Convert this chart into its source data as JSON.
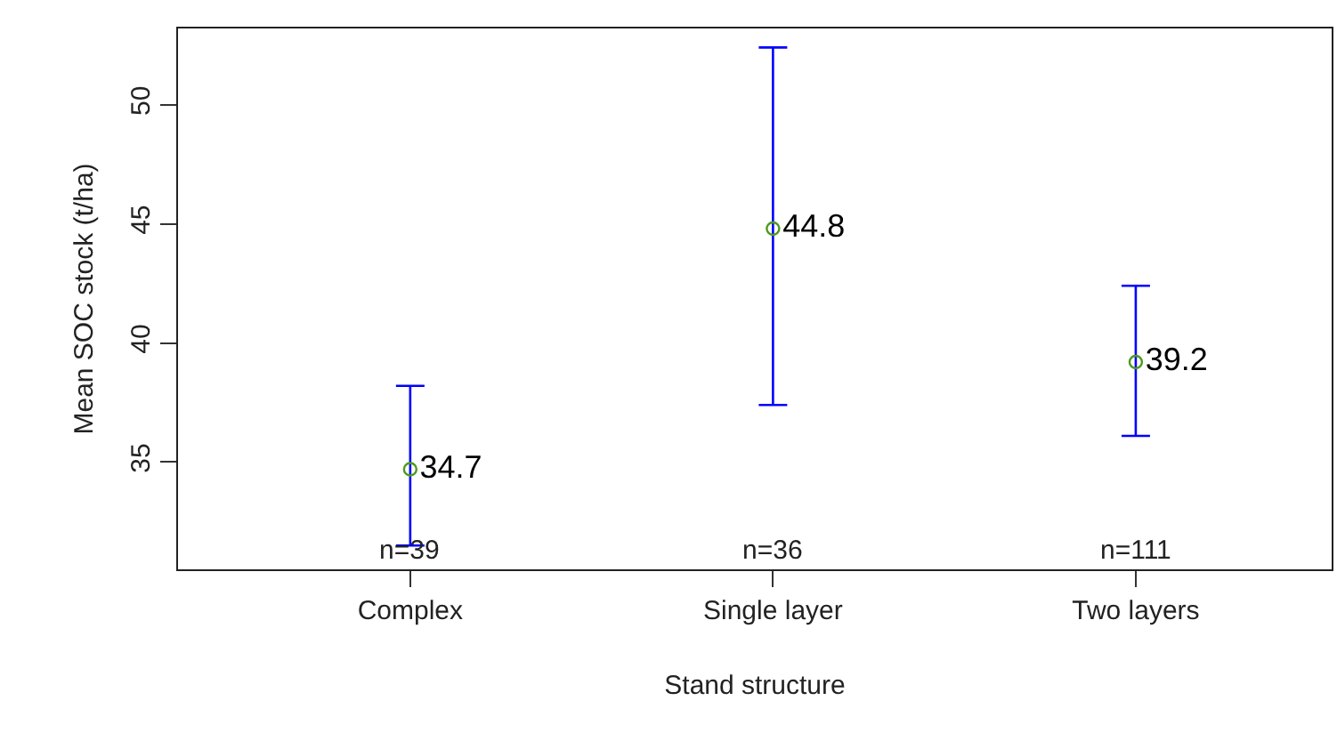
{
  "chart_data": {
    "type": "scatter",
    "xlabel": "Stand structure",
    "ylabel": "Mean SOC stock (t/ha)",
    "categories": [
      "Complex",
      "Single layer",
      "Two layers"
    ],
    "values": [
      34.7,
      44.8,
      39.2
    ],
    "errors": [
      [
        31.5,
        38.2
      ],
      [
        37.4,
        52.4
      ],
      [
        36.1,
        42.4
      ]
    ],
    "color": "#4d9a1e",
    "marker": "circle",
    "data_labels": true,
    "grid": false,
    "legend": false,
    "ylim": [
      30.5,
      53.2
    ],
    "yticks": [
      35,
      40,
      45,
      50
    ],
    "annotations": [
      "n=39",
      "n=36",
      "n=111"
    ]
  }
}
